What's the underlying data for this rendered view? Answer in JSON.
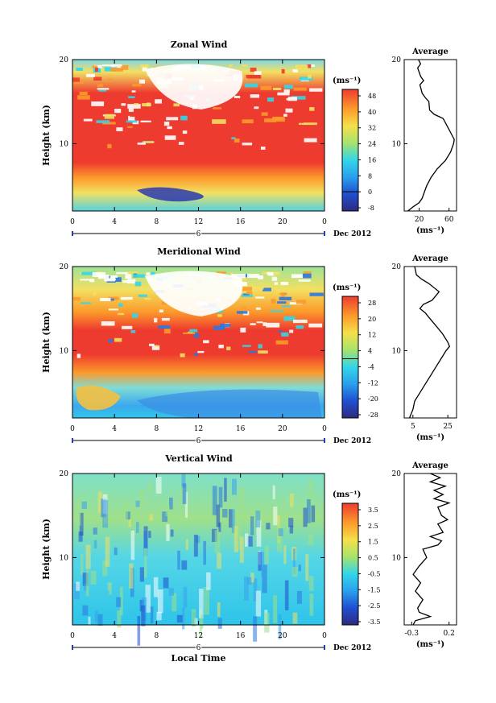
{
  "chart_data": [
    {
      "type": "heatmap",
      "title": "Zonal Wind",
      "xlabel": "",
      "ylabel": "Height (km)",
      "xlim": [
        0,
        24
      ],
      "ylim": [
        2,
        20
      ],
      "x_ticks": [
        "0",
        "4",
        "8",
        "12",
        "16",
        "20",
        "0"
      ],
      "y_ticks": [
        "10",
        "20"
      ],
      "date_marker": "6",
      "date_label": "Dec 2012",
      "colorbar": {
        "unit": "(ms⁻¹)",
        "labels": [
          "48",
          "40",
          "32",
          "24",
          "16",
          "8",
          "0",
          "-8"
        ],
        "range": [
          -8,
          48
        ]
      },
      "profile": {
        "title": "Average",
        "x_ticks": [
          "20",
          "60"
        ],
        "xlim": [
          0,
          70
        ],
        "xlabel": "(ms⁻¹)",
        "y_ticks": [
          "10",
          "20"
        ],
        "points": [
          [
            2,
            5
          ],
          [
            2.5,
            12
          ],
          [
            3,
            20
          ],
          [
            3.5,
            24
          ],
          [
            4,
            26
          ],
          [
            5,
            30
          ],
          [
            6,
            36
          ],
          [
            7,
            44
          ],
          [
            8,
            55
          ],
          [
            9,
            62
          ],
          [
            10,
            66
          ],
          [
            10.5,
            67
          ],
          [
            11,
            64
          ],
          [
            12,
            58
          ],
          [
            13,
            52
          ],
          [
            13.5,
            40
          ],
          [
            14,
            34
          ],
          [
            15,
            33
          ],
          [
            15.5,
            28
          ],
          [
            16,
            24
          ],
          [
            17,
            21
          ],
          [
            17.5,
            26
          ],
          [
            18,
            22
          ],
          [
            19,
            18
          ],
          [
            19.5,
            22
          ],
          [
            20,
            19
          ]
        ]
      }
    },
    {
      "type": "heatmap",
      "title": "Meridional Wind",
      "xlabel": "",
      "ylabel": "Height (km)",
      "xlim": [
        0,
        24
      ],
      "ylim": [
        2,
        20
      ],
      "x_ticks": [
        "0",
        "4",
        "8",
        "12",
        "16",
        "20",
        "0"
      ],
      "y_ticks": [
        "10",
        "20"
      ],
      "date_marker": "6",
      "date_label": "Dec 2012",
      "colorbar": {
        "unit": "(ms⁻¹)",
        "labels": [
          "28",
          "20",
          "12",
          "4",
          "-4",
          "-12",
          "-20",
          "-28"
        ],
        "range": [
          -28,
          28
        ]
      },
      "profile": {
        "title": "Average",
        "x_ticks": [
          "5",
          "25"
        ],
        "xlim": [
          0,
          30
        ],
        "xlabel": "(ms⁻¹)",
        "y_ticks": [
          "10",
          "20"
        ],
        "points": [
          [
            2,
            3
          ],
          [
            2.5,
            4
          ],
          [
            3,
            5
          ],
          [
            4,
            6
          ],
          [
            5,
            9
          ],
          [
            6,
            12
          ],
          [
            7,
            15
          ],
          [
            8,
            18
          ],
          [
            9,
            21
          ],
          [
            10,
            24
          ],
          [
            10.5,
            26
          ],
          [
            11,
            25
          ],
          [
            12,
            22
          ],
          [
            13,
            18
          ],
          [
            14,
            14
          ],
          [
            14.5,
            12
          ],
          [
            15,
            9
          ],
          [
            15.5,
            11
          ],
          [
            16,
            16
          ],
          [
            17,
            20
          ],
          [
            18,
            14
          ],
          [
            18.5,
            10
          ],
          [
            19,
            7
          ],
          [
            20,
            6
          ]
        ]
      }
    },
    {
      "type": "heatmap",
      "title": "Vertical Wind",
      "xlabel": "Local Time",
      "ylabel": "Height (km)",
      "xlim": [
        0,
        24
      ],
      "ylim": [
        2,
        20
      ],
      "x_ticks": [
        "0",
        "4",
        "8",
        "12",
        "16",
        "20",
        "0"
      ],
      "y_ticks": [
        "10",
        "20"
      ],
      "date_marker": "6",
      "date_label": "Dec 2012",
      "colorbar": {
        "unit": "(ms⁻¹)",
        "labels": [
          "3.5",
          "2.5",
          "1.5",
          "0.5",
          "-0.5",
          "-1.5",
          "-2.5",
          "-3.5"
        ],
        "range": [
          -3.5,
          3.5
        ]
      },
      "profile": {
        "title": "Average",
        "x_ticks": [
          "-0.3",
          "0.2"
        ],
        "xlim": [
          -0.4,
          0.3
        ],
        "xlabel": "(ms⁻¹)",
        "y_ticks": [
          "10",
          "20"
        ],
        "points": [
          [
            2,
            -0.28
          ],
          [
            2.5,
            -0.25
          ],
          [
            3,
            -0.05
          ],
          [
            3.5,
            -0.2
          ],
          [
            4,
            -0.22
          ],
          [
            5,
            -0.15
          ],
          [
            6,
            -0.25
          ],
          [
            7,
            -0.18
          ],
          [
            8,
            -0.28
          ],
          [
            9,
            -0.2
          ],
          [
            10,
            -0.1
          ],
          [
            11,
            -0.15
          ],
          [
            11.5,
            0.05
          ],
          [
            12,
            0.1
          ],
          [
            12.5,
            -0.05
          ],
          [
            13,
            0.12
          ],
          [
            14,
            0.05
          ],
          [
            14.5,
            0.18
          ],
          [
            15,
            0.1
          ],
          [
            16,
            0.05
          ],
          [
            16.5,
            0.2
          ],
          [
            17,
            0.0
          ],
          [
            17.5,
            0.12
          ],
          [
            18,
            0.0
          ],
          [
            18.5,
            0.15
          ],
          [
            19,
            -0.05
          ],
          [
            19.5,
            0.08
          ],
          [
            20,
            -0.05
          ]
        ]
      }
    }
  ]
}
